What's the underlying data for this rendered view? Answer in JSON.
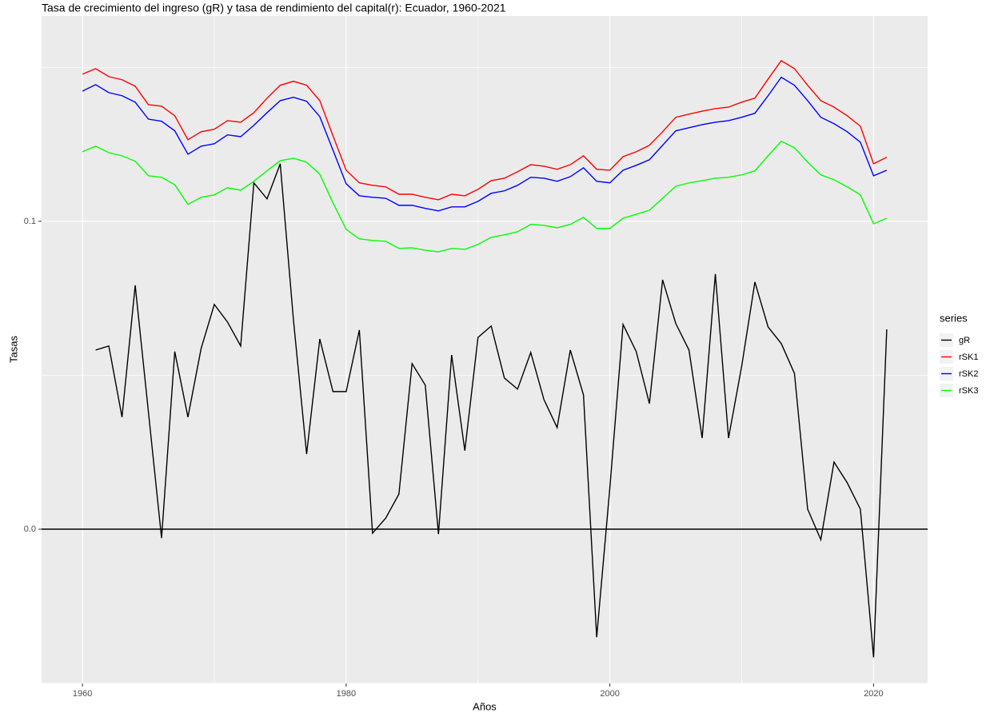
{
  "chart_data": {
    "type": "line",
    "title": "Tasa de crecimiento del ingreso (gR) y tasa de rendimiento del capital(r): Ecuador, 1960-2021",
    "x_label": "Años",
    "y_label": "Tasas",
    "legend_title": "series",
    "legend": "right",
    "x": [
      1960,
      1961,
      1962,
      1963,
      1964,
      1965,
      1966,
      1967,
      1968,
      1969,
      1970,
      1971,
      1972,
      1973,
      1974,
      1975,
      1976,
      1977,
      1978,
      1979,
      1980,
      1981,
      1982,
      1983,
      1984,
      1985,
      1986,
      1987,
      1988,
      1989,
      1990,
      1991,
      1992,
      1993,
      1994,
      1995,
      1996,
      1997,
      1998,
      1999,
      2000,
      2001,
      2002,
      2003,
      2004,
      2005,
      2006,
      2007,
      2008,
      2009,
      2010,
      2011,
      2012,
      2013,
      2014,
      2015,
      2016,
      2017,
      2018,
      2019,
      2020,
      2021
    ],
    "xlim": [
      1956.9,
      2024.1
    ],
    "xticks": [
      1960,
      1980,
      2000,
      2020
    ],
    "ylim": [
      -0.0501,
      0.1667
    ],
    "yticks": [
      {
        "value": 0,
        "label": "0.0"
      },
      0.1
    ],
    "grid": true,
    "hline": 0,
    "series": [
      {
        "name": "gR",
        "color": "#000000",
        "values": [
          null,
          0.0582,
          0.0595,
          0.0364,
          0.0792,
          0.0382,
          -0.0029,
          0.0577,
          0.0364,
          0.0587,
          0.073,
          0.0673,
          0.0595,
          0.1125,
          0.1073,
          0.1187,
          0.0681,
          0.0244,
          0.0618,
          0.0447,
          0.0447,
          0.0647,
          -0.0013,
          0.0036,
          0.0114,
          0.0538,
          0.0468,
          -0.0016,
          0.0566,
          0.0255,
          0.0623,
          0.066,
          0.0491,
          0.0455,
          0.0574,
          0.0421,
          0.033,
          0.0582,
          0.0436,
          -0.0351,
          0.0135,
          0.0665,
          0.0577,
          0.0408,
          0.081,
          0.0668,
          0.0582,
          0.0296,
          0.0829,
          0.0296,
          0.053,
          0.0803,
          0.0657,
          0.0603,
          0.0506,
          0.0065,
          -0.0034,
          0.0218,
          0.0151,
          0.0065,
          -0.0416,
          0.0649
        ]
      },
      {
        "name": "rSK1",
        "color": "#ff0000",
        "values": [
          0.1478,
          0.1496,
          0.147,
          0.146,
          0.1439,
          0.1379,
          0.1374,
          0.1343,
          0.1265,
          0.1291,
          0.1299,
          0.1327,
          0.1322,
          0.1353,
          0.14,
          0.1442,
          0.1455,
          0.1442,
          0.1392,
          0.1278,
          0.1166,
          0.1125,
          0.1117,
          0.1112,
          0.1088,
          0.1088,
          0.1078,
          0.107,
          0.1088,
          0.1083,
          0.1104,
          0.1132,
          0.114,
          0.1161,
          0.1184,
          0.1179,
          0.1169,
          0.1184,
          0.1213,
          0.1169,
          0.1166,
          0.121,
          0.1226,
          0.1247,
          0.1291,
          0.1338,
          0.1348,
          0.1358,
          0.1366,
          0.1371,
          0.1387,
          0.14,
          0.1462,
          0.1522,
          0.1496,
          0.1442,
          0.1392,
          0.1371,
          0.1343,
          0.1309,
          0.1187,
          0.1208
        ]
      },
      {
        "name": "rSK2",
        "color": "#0000ff",
        "values": [
          0.1423,
          0.1444,
          0.1418,
          0.1408,
          0.1387,
          0.1332,
          0.1325,
          0.1294,
          0.1218,
          0.1244,
          0.1252,
          0.1281,
          0.1275,
          0.1312,
          0.1353,
          0.1392,
          0.1403,
          0.139,
          0.134,
          0.1231,
          0.1122,
          0.1083,
          0.1078,
          0.1075,
          0.1052,
          0.1052,
          0.1042,
          0.1034,
          0.1047,
          0.1047,
          0.1065,
          0.1091,
          0.1099,
          0.1117,
          0.1143,
          0.114,
          0.113,
          0.1145,
          0.1174,
          0.113,
          0.1125,
          0.1166,
          0.1182,
          0.12,
          0.1247,
          0.1294,
          0.1304,
          0.1314,
          0.1322,
          0.1327,
          0.1338,
          0.1351,
          0.1408,
          0.1468,
          0.1442,
          0.1392,
          0.1338,
          0.1317,
          0.1291,
          0.1257,
          0.1148,
          0.1166
        ]
      },
      {
        "name": "rSK3",
        "color": "#00ff00",
        "values": [
          0.1226,
          0.1244,
          0.1223,
          0.1213,
          0.1195,
          0.1148,
          0.1143,
          0.1119,
          0.1055,
          0.1078,
          0.1086,
          0.1109,
          0.1101,
          0.113,
          0.1164,
          0.1197,
          0.1205,
          0.1192,
          0.1153,
          0.106,
          0.0974,
          0.0943,
          0.0938,
          0.0935,
          0.0912,
          0.0914,
          0.0906,
          0.0901,
          0.0912,
          0.0909,
          0.0925,
          0.0948,
          0.0956,
          0.0966,
          0.099,
          0.0987,
          0.0979,
          0.099,
          0.1013,
          0.0977,
          0.0977,
          0.101,
          0.1023,
          0.1036,
          0.1075,
          0.1114,
          0.1125,
          0.1132,
          0.114,
          0.1143,
          0.1151,
          0.1164,
          0.1213,
          0.126,
          0.1239,
          0.1192,
          0.1151,
          0.1135,
          0.1112,
          0.1086,
          0.0992,
          0.101
        ]
      }
    ]
  }
}
